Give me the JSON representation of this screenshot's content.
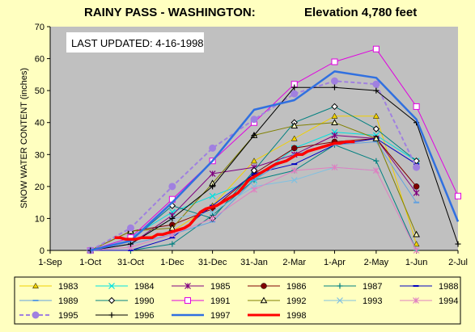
{
  "title_left": "RAINY PASS - WASHINGTON:",
  "title_right": "Elevation 4,780 feet",
  "chart_data": {
    "type": "line",
    "title": "RAINY PASS - WASHINGTON:     Elevation 4,780 feet",
    "annotation": "LAST UPDATED: 4-16-1998",
    "ylabel": "SNOW WATER CONTENT (inches)",
    "xlabel": "",
    "ylim": [
      0,
      70
    ],
    "yticks": [
      0,
      10,
      20,
      30,
      40,
      50,
      60,
      70
    ],
    "xlim_days": [
      0,
      304
    ],
    "xticks": [
      {
        "label": "1-Sep",
        "day": 0
      },
      {
        "label": "1-Oct",
        "day": 30
      },
      {
        "label": "31-Oct",
        "day": 60
      },
      {
        "label": "1-Dec",
        "day": 91
      },
      {
        "label": "31-Dec",
        "day": 121
      },
      {
        "label": "31-Jan",
        "day": 152
      },
      {
        "label": "2-Mar",
        "day": 182
      },
      {
        "label": "1-Apr",
        "day": 212
      },
      {
        "label": "2-May",
        "day": 243
      },
      {
        "label": "1-Jun",
        "day": 273
      },
      {
        "label": "2-Jul",
        "day": 304
      }
    ],
    "grid": false,
    "legend_position": "bottom",
    "series": [
      {
        "name": "1983",
        "color": "#f0d000",
        "width": 1,
        "marker": "triangle",
        "x": [
          30,
          91,
          121,
          152,
          182,
          212,
          243,
          273
        ],
        "y": [
          0,
          6,
          14,
          28,
          35,
          42,
          42,
          2
        ]
      },
      {
        "name": "1984",
        "color": "#00e0e0",
        "width": 1,
        "marker": "x",
        "x": [
          30,
          60,
          91,
          121,
          152,
          182,
          212,
          243,
          273
        ],
        "y": [
          0,
          4,
          12,
          17,
          22,
          32,
          37,
          36,
          28
        ]
      },
      {
        "name": "1985",
        "color": "#800080",
        "width": 1,
        "marker": "star",
        "x": [
          30,
          60,
          91,
          121,
          152,
          182,
          212,
          243,
          273
        ],
        "y": [
          0,
          2,
          11,
          24,
          26,
          30,
          36,
          35,
          18
        ]
      },
      {
        "name": "1986",
        "color": "#800000",
        "width": 1,
        "marker": "dot",
        "x": [
          30,
          60,
          91,
          121,
          152,
          182,
          212,
          243,
          273
        ],
        "y": [
          0,
          6,
          8,
          13,
          24,
          32,
          34,
          35,
          20
        ]
      },
      {
        "name": "1987",
        "color": "#008080",
        "width": 1,
        "marker": "plus",
        "x": [
          30,
          60,
          91,
          121,
          152,
          182,
          212,
          243,
          273
        ],
        "y": [
          0,
          0,
          2,
          11,
          22,
          25,
          33,
          28,
          0
        ]
      },
      {
        "name": "1988",
        "color": "#0000c0",
        "width": 1,
        "marker": "dash",
        "x": [
          30,
          60,
          91,
          121,
          152,
          182,
          212,
          243,
          273
        ],
        "y": [
          0,
          0,
          4,
          14,
          24,
          27,
          33,
          35,
          27
        ]
      },
      {
        "name": "1989",
        "color": "#60a0e0",
        "width": 1,
        "marker": "dash",
        "x": [
          30,
          60,
          91,
          121,
          152,
          182,
          212,
          243,
          273
        ],
        "y": [
          0,
          2,
          5,
          9,
          22,
          30,
          33,
          34,
          15
        ]
      },
      {
        "name": "1990",
        "color": "#008080",
        "width": 1,
        "marker": "diamond",
        "x": [
          30,
          60,
          91,
          121,
          152,
          182,
          212,
          243,
          273
        ],
        "y": [
          0,
          3,
          14,
          10,
          25,
          40,
          45,
          38,
          28
        ]
      },
      {
        "name": "1991",
        "color": "#e000e0",
        "width": 1,
        "marker": "square",
        "x": [
          30,
          60,
          91,
          121,
          152,
          182,
          212,
          243,
          273,
          304
        ],
        "y": [
          0,
          4,
          16,
          28,
          40,
          52,
          59,
          63,
          45,
          17
        ]
      },
      {
        "name": "1992",
        "color": "#808000",
        "width": 1,
        "marker": "triangle-open",
        "x": [
          30,
          60,
          91,
          121,
          152,
          182,
          212,
          243,
          273
        ],
        "y": [
          0,
          6,
          7,
          21,
          36,
          39,
          40,
          35,
          5
        ]
      },
      {
        "name": "1993",
        "color": "#80c0e0",
        "width": 1,
        "marker": "x",
        "x": [
          30,
          60,
          91,
          121,
          152,
          182,
          212,
          243
        ],
        "y": [
          0,
          2,
          10,
          12,
          20,
          22,
          26,
          25
        ]
      },
      {
        "name": "1994",
        "color": "#e080c0",
        "width": 1,
        "marker": "star",
        "x": [
          30,
          60,
          91,
          121,
          152,
          182,
          212,
          243,
          273
        ],
        "y": [
          0,
          1,
          5,
          10,
          19,
          25,
          26,
          25,
          0
        ]
      },
      {
        "name": "1995",
        "color": "#a080e0",
        "width": 2,
        "dash": true,
        "marker": "dot-large",
        "x": [
          30,
          60,
          91,
          121,
          152,
          182,
          212,
          243,
          273
        ],
        "y": [
          0,
          7,
          20,
          32,
          41,
          49,
          53,
          52,
          26
        ]
      },
      {
        "name": "1996",
        "color": "#000000",
        "width": 1,
        "marker": "plus",
        "x": [
          30,
          60,
          91,
          121,
          152,
          182,
          212,
          243,
          273,
          304
        ],
        "y": [
          0,
          2,
          10,
          20,
          36,
          51,
          51,
          50,
          40,
          2
        ]
      },
      {
        "name": "1997",
        "color": "#3070e0",
        "width": 2.5,
        "marker": "none",
        "x": [
          30,
          60,
          91,
          121,
          152,
          182,
          212,
          243,
          273,
          304
        ],
        "y": [
          0,
          3,
          15,
          28,
          44,
          47,
          56,
          54,
          41,
          9
        ]
      },
      {
        "name": "1998",
        "color": "#ff0000",
        "width": 3.5,
        "marker": "none",
        "x": [
          48,
          52,
          56,
          60,
          64,
          68,
          72,
          76,
          80,
          84,
          88,
          92,
          96,
          100,
          104,
          108,
          112,
          116,
          120,
          124,
          128,
          132,
          136,
          140,
          144,
          148,
          152,
          156,
          160,
          164,
          168,
          172,
          176,
          180,
          184,
          188,
          192,
          196,
          200,
          204,
          208,
          212,
          216,
          220,
          224,
          227
        ],
        "y": [
          4,
          4,
          3.5,
          3.5,
          3.5,
          4,
          4,
          4,
          5,
          5,
          5.5,
          6,
          6.5,
          7,
          8,
          10,
          12,
          13,
          13.5,
          14,
          15,
          16,
          17,
          18,
          20,
          22,
          23,
          24,
          25,
          26,
          27,
          27.5,
          28,
          29,
          30,
          30,
          31,
          31.5,
          32,
          32.5,
          33,
          33.5,
          33.5,
          34,
          34,
          34
        ]
      }
    ]
  }
}
